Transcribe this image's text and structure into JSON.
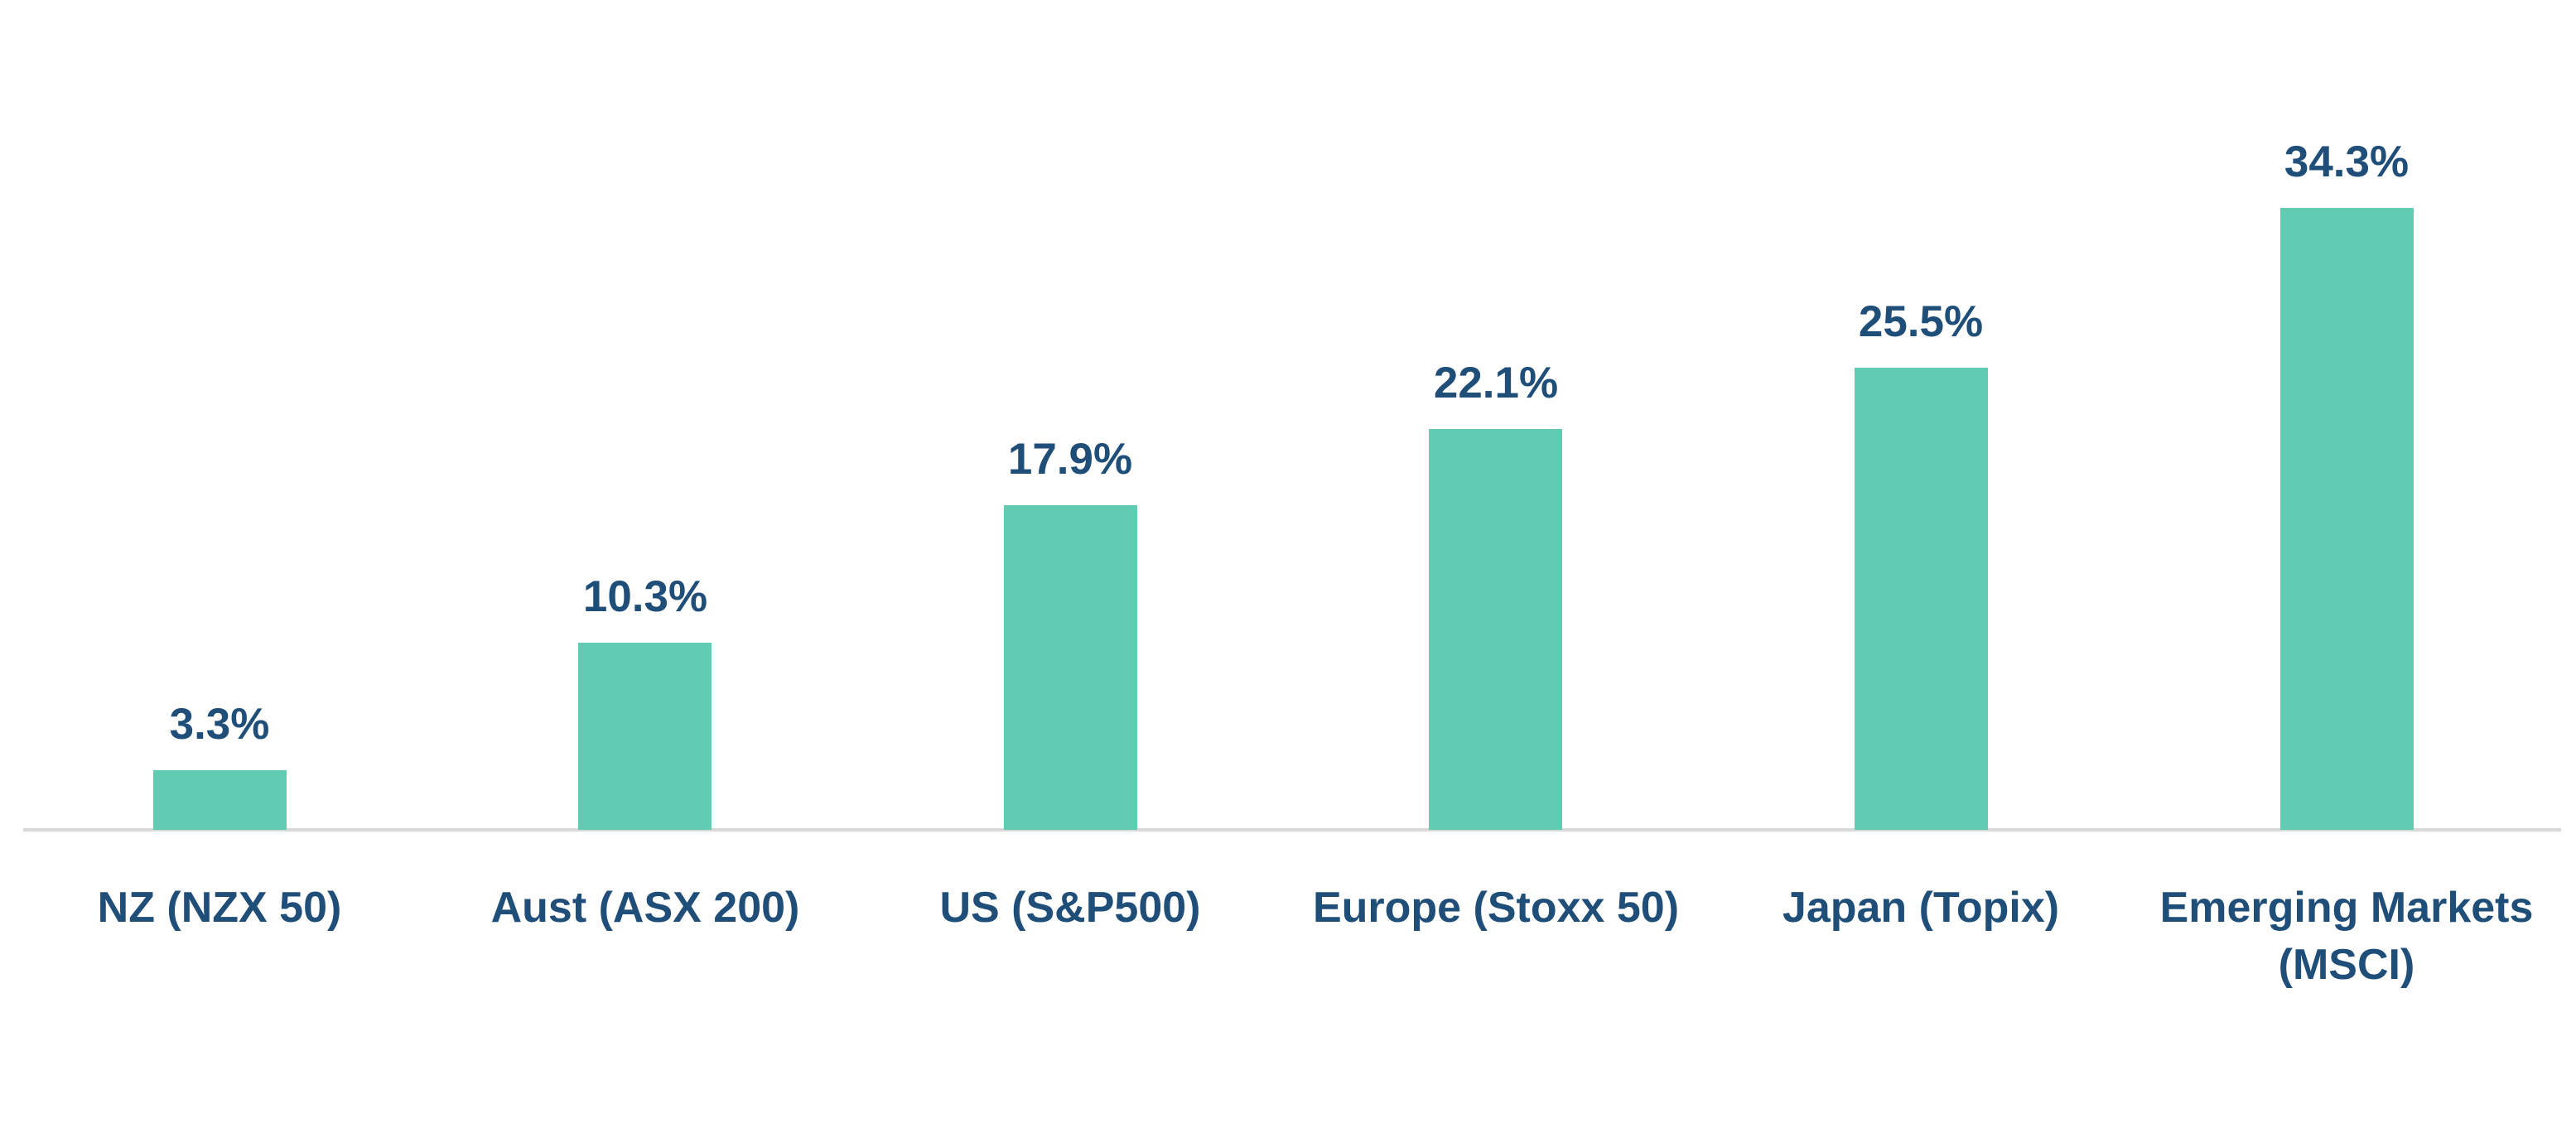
{
  "chart_data": {
    "type": "bar",
    "categories": [
      "NZ (NZX 50)",
      "Aust (ASX 200)",
      "US (S&P500)",
      "Europe (Stoxx 50)",
      "Japan (Topix)",
      "Emerging Markets\n(MSCI)"
    ],
    "values": [
      3.3,
      10.3,
      17.9,
      22.1,
      25.5,
      34.3
    ],
    "data_labels": [
      "3.3%",
      "10.3%",
      "17.9%",
      "22.1%",
      "25.5%",
      "34.3%"
    ],
    "title": "",
    "xlabel": "",
    "ylabel": "",
    "ylim": [
      0,
      40
    ],
    "grid": false,
    "legend": false,
    "y_axis_visible": false,
    "colors": {
      "bar_fill": "#62ccb2",
      "label_text": "#1f4e79",
      "axis_line": "#d9d9d9",
      "background": "#ffffff"
    }
  }
}
